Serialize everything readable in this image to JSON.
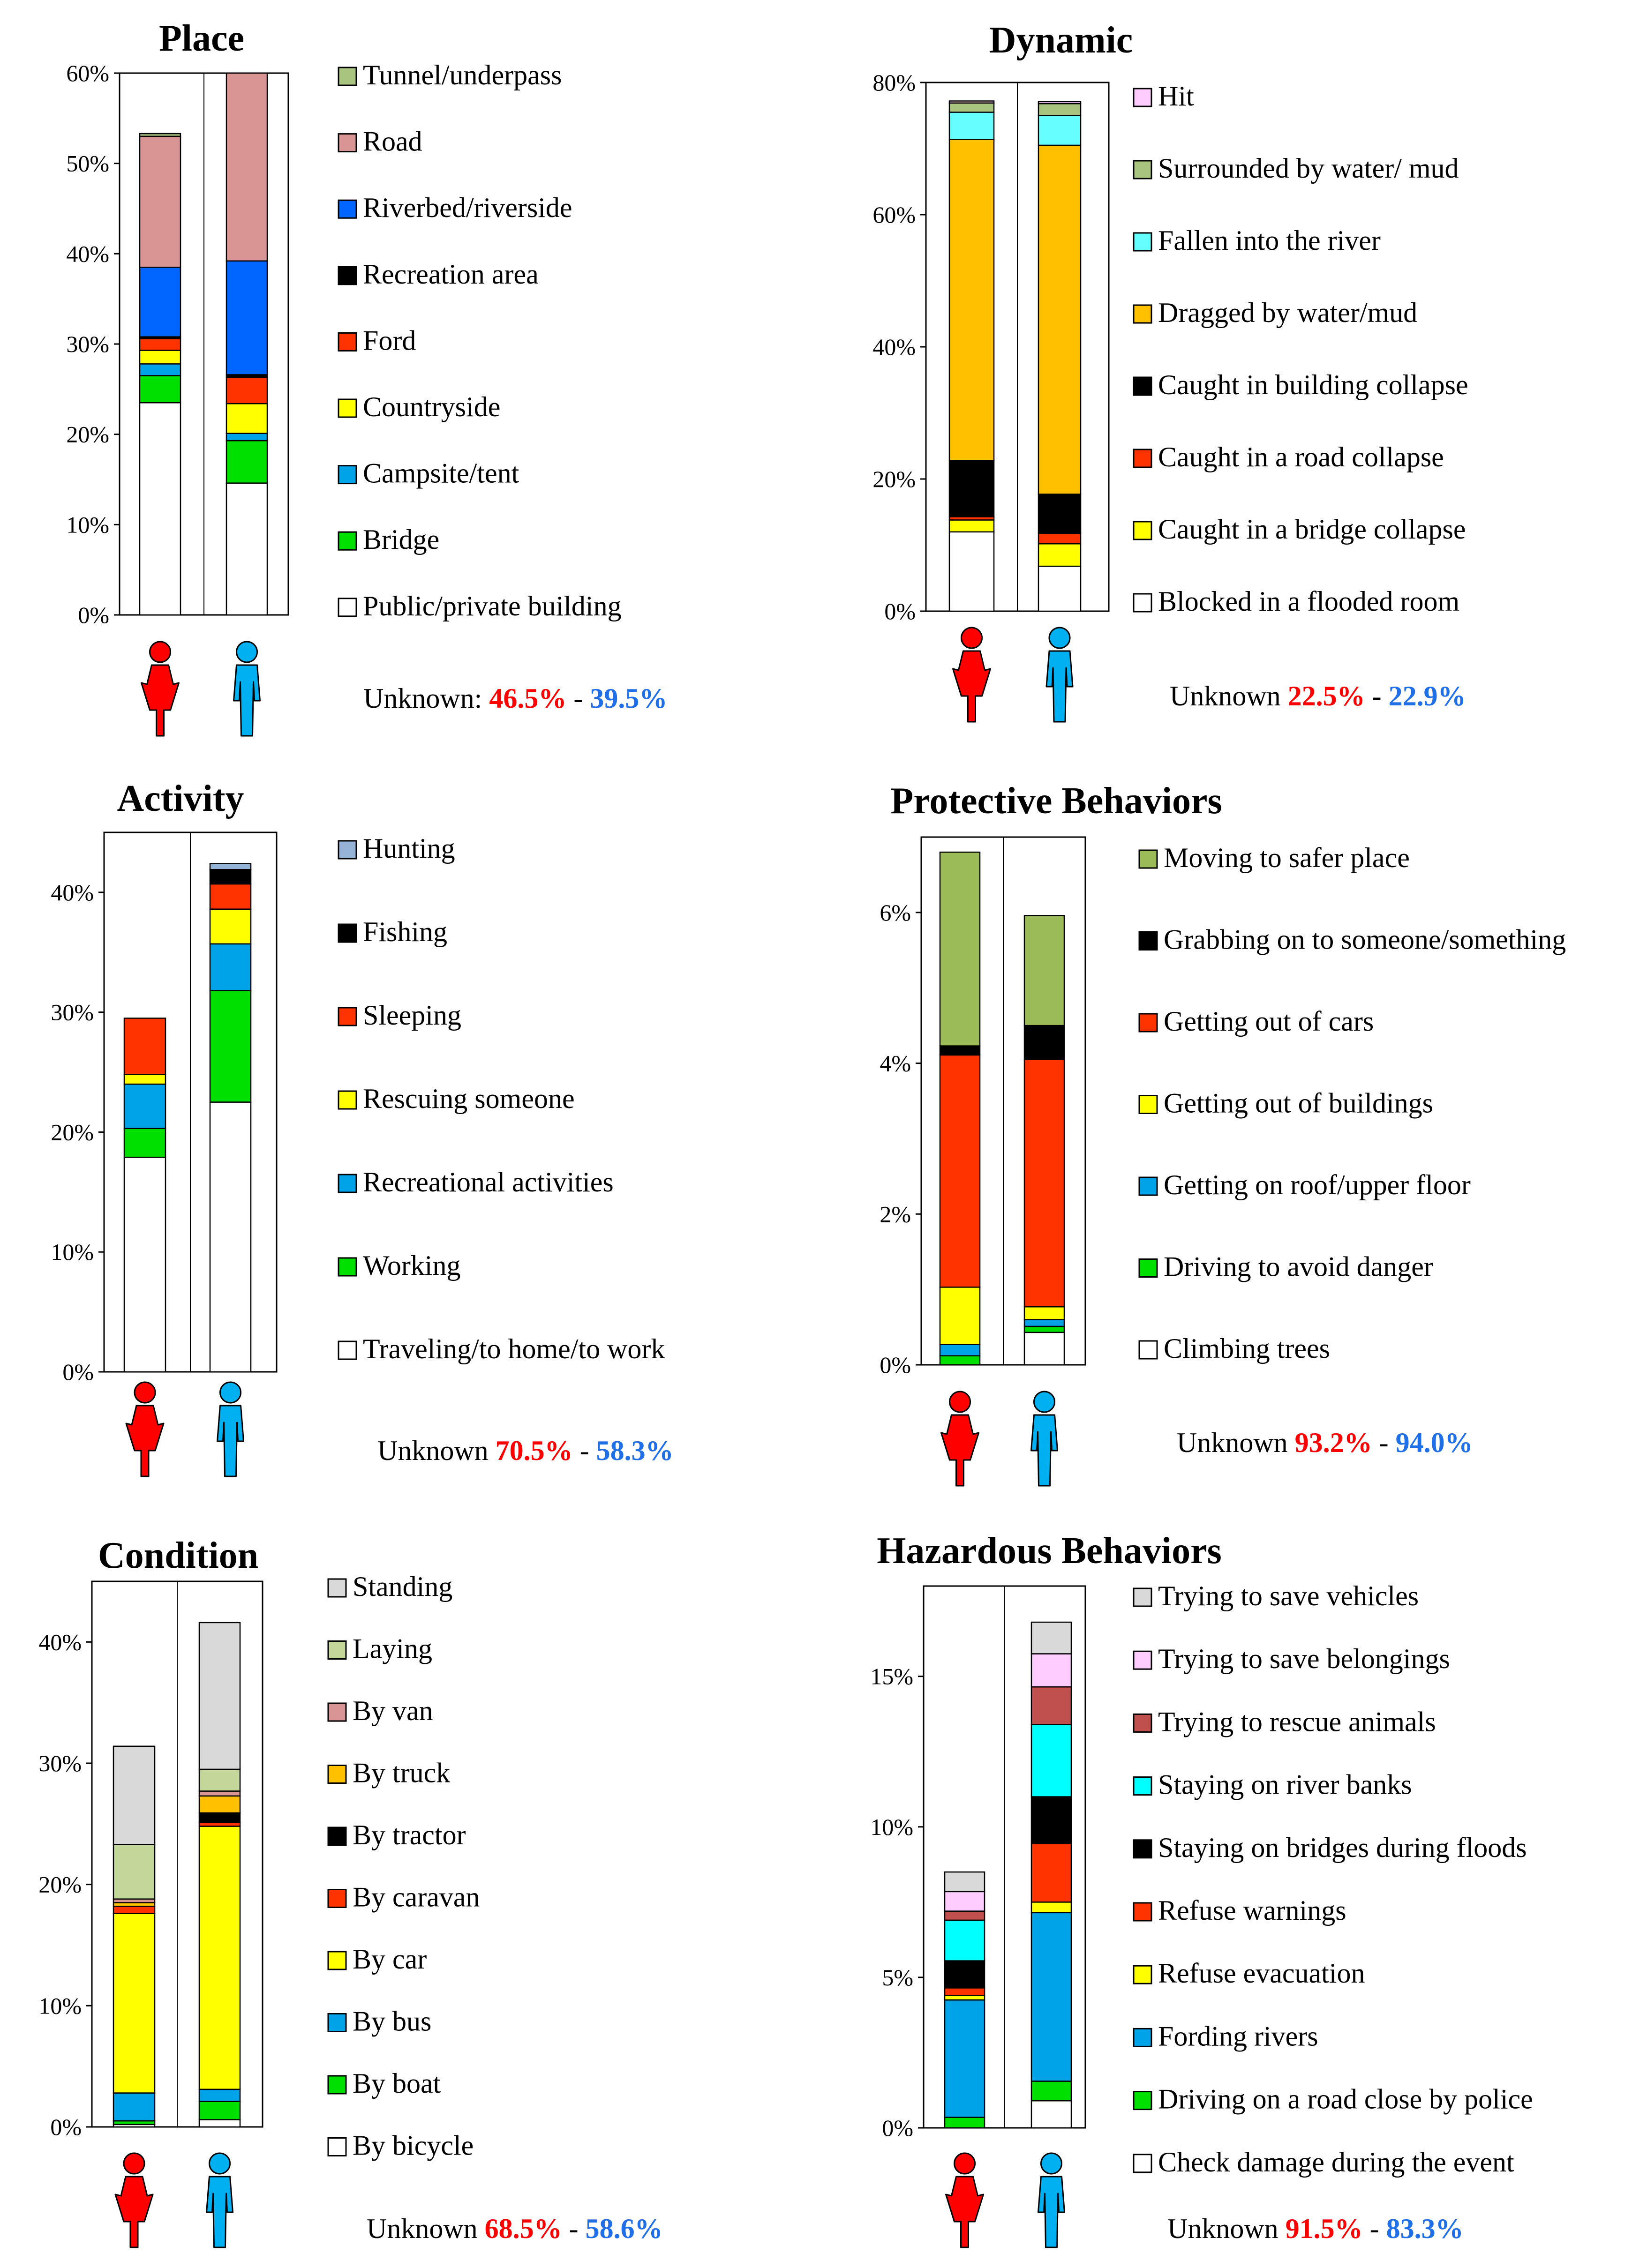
{
  "colors": {
    "female": "#ff0000",
    "male": "#00b0f0",
    "female_text": "#ff0000",
    "male_text": "#1f6fe8",
    "frame": "#000000"
  },
  "chart_data": [
    {
      "id": "place",
      "type": "bar",
      "stacked": true,
      "title": "Place",
      "ylim": [
        0,
        60
      ],
      "yticks": [
        0,
        10,
        20,
        30,
        40,
        50,
        60
      ],
      "tick_suffix": "%",
      "categories": [
        "Female",
        "Male"
      ],
      "series": [
        {
          "name": "Public/private building",
          "color": "#ffffff",
          "values": [
            23.5,
            14.6
          ]
        },
        {
          "name": "Bridge",
          "color": "#00e000",
          "values": [
            3.0,
            4.7
          ]
        },
        {
          "name": "Campsite/tent",
          "color": "#00a2e8",
          "values": [
            1.3,
            0.8
          ]
        },
        {
          "name": "Countryside",
          "color": "#ffff00",
          "values": [
            1.5,
            3.3
          ]
        },
        {
          "name": "Ford",
          "color": "#ff3300",
          "values": [
            1.3,
            2.9
          ]
        },
        {
          "name": "Recreation area",
          "color": "#000000",
          "values": [
            0.2,
            0.3
          ]
        },
        {
          "name": "Riverbed/riverside",
          "color": "#0066ff",
          "values": [
            7.7,
            12.6
          ]
        },
        {
          "name": "Road",
          "color": "#d99594",
          "values": [
            14.5,
            20.8
          ]
        },
        {
          "name": "Tunnel/underpass",
          "color": "#a9c47f",
          "values": [
            0.3,
            0.0
          ]
        }
      ],
      "legend_order": [
        "Tunnel/underpass",
        "Road",
        "Riverbed/riverside",
        "Recreation area",
        "Ford",
        "Countryside",
        "Campsite/tent",
        "Bridge",
        "Public/private building"
      ],
      "unknown": {
        "label": "Unknown:",
        "female": "46.5%",
        "sep": "-",
        "male": "39.5%"
      }
    },
    {
      "id": "dynamic",
      "type": "bar",
      "stacked": true,
      "title": "Dynamic",
      "ylim": [
        0,
        80
      ],
      "yticks": [
        0,
        20,
        40,
        60,
        80
      ],
      "tick_suffix": "%",
      "categories": [
        "Female",
        "Male"
      ],
      "series": [
        {
          "name": "Blocked in a flooded room",
          "color": "#ffffff",
          "values": [
            12.0,
            6.8
          ]
        },
        {
          "name": "Caught in a bridge collapse",
          "color": "#ffff00",
          "values": [
            1.8,
            3.4
          ]
        },
        {
          "name": "Caught in a road collapse",
          "color": "#ff3300",
          "values": [
            0.5,
            1.6
          ]
        },
        {
          "name": "Caught in building collapse",
          "color": "#000000",
          "values": [
            8.5,
            5.9
          ]
        },
        {
          "name": "Dragged by water/mud",
          "color": "#ffc000",
          "values": [
            48.6,
            52.8
          ]
        },
        {
          "name": "Fallen into the river",
          "color": "#66ffff",
          "values": [
            4.1,
            4.5
          ]
        },
        {
          "name": "Surrounded by water/ mud",
          "color": "#a9c47f",
          "values": [
            1.4,
            1.8
          ]
        },
        {
          "name": "Hit",
          "color": "#ffccff",
          "values": [
            0.3,
            0.3
          ]
        }
      ],
      "legend_order": [
        "Hit",
        "Surrounded by water/ mud",
        "Fallen into the river",
        "Dragged by water/mud",
        "Caught in building collapse",
        "Caught in a road collapse",
        "Caught in a bridge collapse",
        "Blocked in a flooded room"
      ],
      "unknown": {
        "label": "Unknown",
        "female": "22.5%",
        "sep": "-",
        "male": "22.9%"
      }
    },
    {
      "id": "activity",
      "type": "bar",
      "stacked": true,
      "title": "Activity",
      "ylim": [
        0,
        45
      ],
      "yticks": [
        0,
        10,
        20,
        30,
        40
      ],
      "tick_suffix": "%",
      "categories": [
        "Female",
        "Male"
      ],
      "series": [
        {
          "name": "Traveling/to home/to work",
          "color": "#ffffff",
          "values": [
            17.9,
            22.5
          ]
        },
        {
          "name": "Working",
          "color": "#00e000",
          "values": [
            2.4,
            9.3
          ]
        },
        {
          "name": "Recreational activities",
          "color": "#00a2e8",
          "values": [
            3.7,
            3.9
          ]
        },
        {
          "name": "Rescuing someone",
          "color": "#ffff00",
          "values": [
            0.8,
            2.9
          ]
        },
        {
          "name": "Sleeping",
          "color": "#ff3300",
          "values": [
            4.7,
            2.1
          ]
        },
        {
          "name": "Fishing",
          "color": "#000000",
          "values": [
            0.0,
            1.2
          ]
        },
        {
          "name": "Hunting",
          "color": "#95b3d7",
          "values": [
            0.0,
            0.5
          ]
        }
      ],
      "legend_order": [
        "Hunting",
        "Fishing",
        "Sleeping",
        "Rescuing someone",
        "Recreational activities",
        "Working",
        "Traveling/to home/to work"
      ],
      "unknown": {
        "label": "Unknown",
        "female": "70.5%",
        "sep": "-",
        "male": "58.3%"
      }
    },
    {
      "id": "protective",
      "type": "bar",
      "stacked": true,
      "title": "Protective Behaviors",
      "ylim": [
        0,
        7
      ],
      "yticks": [
        0,
        2,
        4,
        6
      ],
      "tick_suffix": "%",
      "categories": [
        "Female",
        "Male"
      ],
      "series": [
        {
          "name": "Climbing trees",
          "color": "#ffffff",
          "values": [
            0.0,
            0.43
          ]
        },
        {
          "name": "Driving to avoid danger",
          "color": "#00e000",
          "values": [
            0.12,
            0.08
          ]
        },
        {
          "name": "Getting on roof/upper floor",
          "color": "#00a2e8",
          "values": [
            0.15,
            0.09
          ]
        },
        {
          "name": "Getting out of buildings",
          "color": "#ffff00",
          "values": [
            0.76,
            0.17
          ]
        },
        {
          "name": "Getting out of cars",
          "color": "#ff3300",
          "values": [
            3.08,
            3.28
          ]
        },
        {
          "name": "Grabbing on to someone/something",
          "color": "#000000",
          "values": [
            0.12,
            0.45
          ]
        },
        {
          "name": "Moving to safer place",
          "color": "#9bbb59",
          "values": [
            2.57,
            1.46
          ]
        }
      ],
      "legend_order": [
        "Moving to safer place",
        "Grabbing on to someone/something",
        "Getting out of cars",
        "Getting out of buildings",
        "Getting on roof/upper floor",
        "Driving to avoid danger",
        "Climbing trees"
      ],
      "unknown": {
        "label": "Unknown",
        "female": "93.2%",
        "sep": "-",
        "male": "94.0%"
      }
    },
    {
      "id": "condition",
      "type": "bar",
      "stacked": true,
      "title": "Condition",
      "ylim": [
        0,
        45
      ],
      "yticks": [
        0,
        10,
        20,
        30,
        40
      ],
      "tick_suffix": "%",
      "categories": [
        "Female",
        "Male"
      ],
      "series": [
        {
          "name": "By bicycle",
          "color": "#ffffff",
          "values": [
            0.2,
            0.6
          ]
        },
        {
          "name": "By boat",
          "color": "#00e000",
          "values": [
            0.3,
            1.5
          ]
        },
        {
          "name": "By bus",
          "color": "#00a2e8",
          "values": [
            2.3,
            1.0
          ]
        },
        {
          "name": "By car",
          "color": "#ffff00",
          "values": [
            14.8,
            21.7
          ]
        },
        {
          "name": "By caravan",
          "color": "#ff3300",
          "values": [
            0.6,
            0.3
          ]
        },
        {
          "name": "By tractor",
          "color": "#000000",
          "values": [
            0.0,
            0.8
          ]
        },
        {
          "name": "By truck",
          "color": "#ffc000",
          "values": [
            0.3,
            1.4
          ]
        },
        {
          "name": "By van",
          "color": "#d99594",
          "values": [
            0.3,
            0.4
          ]
        },
        {
          "name": "Laying",
          "color": "#c4d79b",
          "values": [
            4.5,
            1.8
          ]
        },
        {
          "name": "Standing",
          "color": "#d9d9d9",
          "values": [
            8.1,
            12.1
          ]
        }
      ],
      "legend_order": [
        "Standing",
        "Laying",
        "By van",
        "By truck",
        "By tractor",
        "By caravan",
        "By car",
        "By bus",
        "By boat",
        "By bicycle"
      ],
      "unknown": {
        "label": "Unknown",
        "female": "68.5%",
        "sep": "-",
        "male": "58.6%"
      }
    },
    {
      "id": "hazardous",
      "type": "bar",
      "stacked": true,
      "title": "Hazardous Behaviors",
      "ylim": [
        0,
        18
      ],
      "yticks": [
        0,
        5,
        10,
        15
      ],
      "tick_suffix": "%",
      "categories": [
        "Female",
        "Male"
      ],
      "series": [
        {
          "name": "Check damage during the event",
          "color": "#ffffff",
          "values": [
            0.0,
            0.9
          ]
        },
        {
          "name": "Driving on a road close by police",
          "color": "#00e000",
          "values": [
            0.35,
            0.65
          ]
        },
        {
          "name": "Fording rivers",
          "color": "#00a2e8",
          "values": [
            3.9,
            5.6
          ]
        },
        {
          "name": "Refuse evacuation",
          "color": "#ffff00",
          "values": [
            0.15,
            0.35
          ]
        },
        {
          "name": "Refuse warnings",
          "color": "#ff3300",
          "values": [
            0.25,
            1.95
          ]
        },
        {
          "name": "Staying on bridges during floods",
          "color": "#000000",
          "values": [
            0.9,
            1.55
          ]
        },
        {
          "name": "Staying on river banks",
          "color": "#00ffff",
          "values": [
            1.35,
            2.4
          ]
        },
        {
          "name": "Trying to rescue animals",
          "color": "#c0504d",
          "values": [
            0.3,
            1.25
          ]
        },
        {
          "name": "Trying to save belongings",
          "color": "#ffccff",
          "values": [
            0.65,
            1.1
          ]
        },
        {
          "name": "Trying to save vehicles",
          "color": "#d9d9d9",
          "values": [
            0.65,
            1.05
          ]
        }
      ],
      "legend_order": [
        "Trying to save vehicles",
        "Trying to save belongings",
        "Trying to rescue animals",
        "Staying on river banks",
        "Staying on bridges during floods",
        "Refuse warnings",
        "Refuse evacuation",
        "Fording rivers",
        "Driving on a road close by police",
        "Check damage during the event"
      ],
      "unknown": {
        "label": "Unknown",
        "female": "91.5%",
        "sep": "-",
        "male": "83.3%"
      }
    }
  ]
}
